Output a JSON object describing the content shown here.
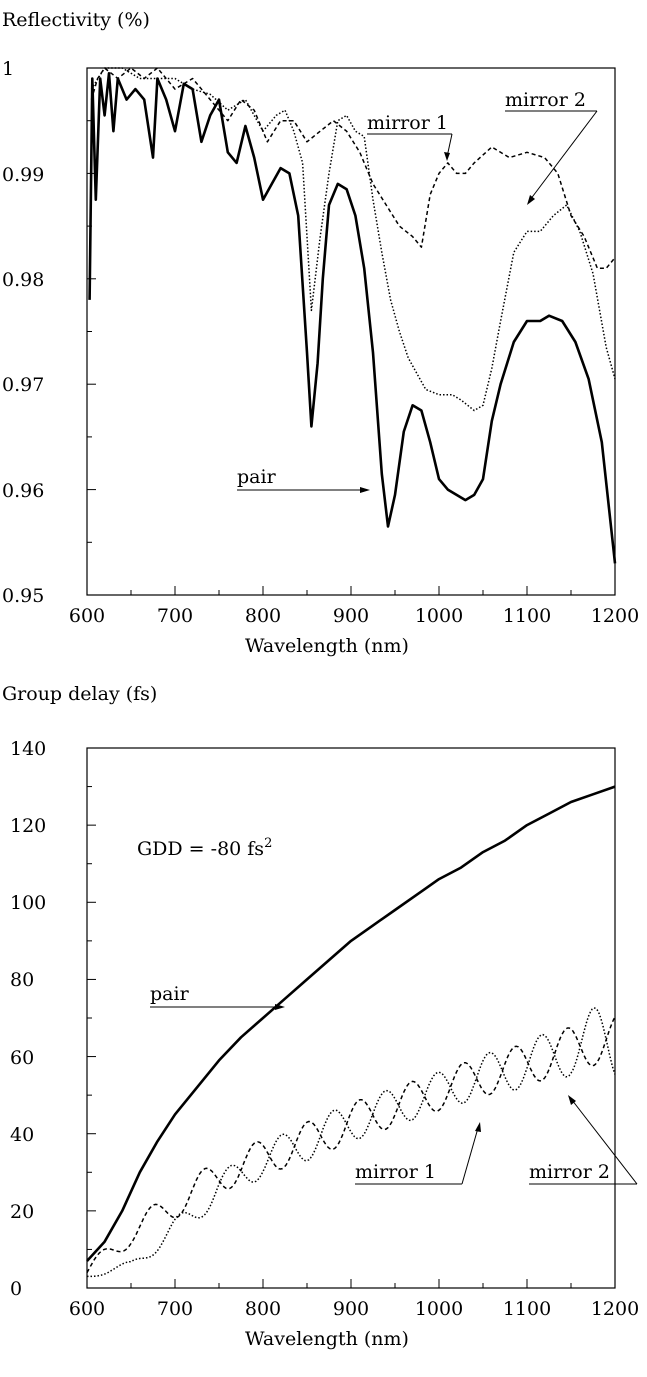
{
  "chart_data": [
    {
      "type": "line",
      "ylabel": "Reflectivity (%)",
      "xlabel": "Wavelength (nm)",
      "xlim": [
        600,
        1200
      ],
      "ylim": [
        0.95,
        1.0
      ],
      "x_ticks": [
        "600",
        "700",
        "800",
        "900",
        "1000",
        "1100",
        "1200"
      ],
      "y_ticks": [
        "0.95",
        "0.96",
        "0.97",
        "0.98",
        "0.99",
        "1"
      ],
      "annotations": [
        "mirror 1",
        "mirror 2",
        "pair"
      ],
      "series": [
        {
          "name": "mirror 1",
          "style": "dashed",
          "points": [
            [
              605,
              0.997
            ],
            [
              612,
              0.999
            ],
            [
              620,
              1.0
            ],
            [
              635,
              0.999
            ],
            [
              650,
              1.0
            ],
            [
              665,
              0.999
            ],
            [
              680,
              1.0
            ],
            [
              700,
              0.998
            ],
            [
              720,
              0.999
            ],
            [
              740,
              0.997
            ],
            [
              760,
              0.995
            ],
            [
              775,
              0.997
            ],
            [
              790,
              0.996
            ],
            [
              805,
              0.993
            ],
            [
              820,
              0.995
            ],
            [
              835,
              0.995
            ],
            [
              850,
              0.993
            ],
            [
              865,
              0.994
            ],
            [
              880,
              0.995
            ],
            [
              895,
              0.994
            ],
            [
              910,
              0.992
            ],
            [
              925,
              0.989
            ],
            [
              940,
              0.987
            ],
            [
              955,
              0.985
            ],
            [
              970,
              0.984
            ],
            [
              980,
              0.983
            ],
            [
              990,
              0.988
            ],
            [
              1000,
              0.99
            ],
            [
              1010,
              0.991
            ],
            [
              1020,
              0.99
            ],
            [
              1030,
              0.99
            ],
            [
              1040,
              0.991
            ],
            [
              1060,
              0.9925
            ],
            [
              1080,
              0.9915
            ],
            [
              1100,
              0.992
            ],
            [
              1120,
              0.9915
            ],
            [
              1135,
              0.99
            ],
            [
              1150,
              0.986
            ],
            [
              1165,
              0.984
            ],
            [
              1180,
              0.981
            ],
            [
              1190,
              0.981
            ],
            [
              1200,
              0.982
            ]
          ]
        },
        {
          "name": "mirror 2",
          "style": "dotted",
          "points": [
            [
              605,
              0.998
            ],
            [
              620,
              1.0
            ],
            [
              640,
              1.0
            ],
            [
              660,
              0.999
            ],
            [
              680,
              0.999
            ],
            [
              700,
              0.999
            ],
            [
              720,
              0.998
            ],
            [
              740,
              0.9975
            ],
            [
              760,
              0.996
            ],
            [
              780,
              0.997
            ],
            [
              800,
              0.994
            ],
            [
              815,
              0.9955
            ],
            [
              825,
              0.996
            ],
            [
              835,
              0.994
            ],
            [
              845,
              0.991
            ],
            [
              855,
              0.977
            ],
            [
              865,
              0.984
            ],
            [
              875,
              0.99
            ],
            [
              885,
              0.995
            ],
            [
              895,
              0.9955
            ],
            [
              905,
              0.994
            ],
            [
              915,
              0.9935
            ],
            [
              925,
              0.9875
            ],
            [
              935,
              0.9825
            ],
            [
              945,
              0.978
            ],
            [
              955,
              0.975
            ],
            [
              965,
              0.9725
            ],
            [
              975,
              0.971
            ],
            [
              985,
              0.9695
            ],
            [
              1000,
              0.969
            ],
            [
              1015,
              0.969
            ],
            [
              1025,
              0.9685
            ],
            [
              1040,
              0.9675
            ],
            [
              1050,
              0.968
            ],
            [
              1060,
              0.9715
            ],
            [
              1070,
              0.976
            ],
            [
              1085,
              0.9825
            ],
            [
              1100,
              0.9845
            ],
            [
              1115,
              0.9845
            ],
            [
              1130,
              0.986
            ],
            [
              1145,
              0.987
            ],
            [
              1160,
              0.9845
            ],
            [
              1175,
              0.9805
            ],
            [
              1190,
              0.9735
            ],
            [
              1200,
              0.9705
            ]
          ]
        },
        {
          "name": "pair",
          "style": "solid",
          "points": [
            [
              603,
              0.978
            ],
            [
              606,
              0.999
            ],
            [
              610,
              0.9875
            ],
            [
              615,
              0.999
            ],
            [
              620,
              0.9955
            ],
            [
              625,
              0.9995
            ],
            [
              630,
              0.994
            ],
            [
              635,
              0.999
            ],
            [
              645,
              0.997
            ],
            [
              655,
              0.998
            ],
            [
              665,
              0.997
            ],
            [
              675,
              0.9915
            ],
            [
              680,
              0.999
            ],
            [
              690,
              0.997
            ],
            [
              700,
              0.994
            ],
            [
              710,
              0.9985
            ],
            [
              720,
              0.998
            ],
            [
              730,
              0.993
            ],
            [
              740,
              0.9955
            ],
            [
              750,
              0.997
            ],
            [
              760,
              0.992
            ],
            [
              770,
              0.991
            ],
            [
              780,
              0.9945
            ],
            [
              790,
              0.9915
            ],
            [
              800,
              0.9875
            ],
            [
              810,
              0.989
            ],
            [
              820,
              0.9905
            ],
            [
              830,
              0.99
            ],
            [
              840,
              0.986
            ],
            [
              850,
              0.973
            ],
            [
              855,
              0.966
            ],
            [
              862,
              0.972
            ],
            [
              868,
              0.98
            ],
            [
              875,
              0.987
            ],
            [
              885,
              0.989
            ],
            [
              895,
              0.9885
            ],
            [
              905,
              0.986
            ],
            [
              915,
              0.981
            ],
            [
              925,
              0.973
            ],
            [
              935,
              0.9615
            ],
            [
              942,
              0.9565
            ],
            [
              950,
              0.9595
            ],
            [
              960,
              0.9655
            ],
            [
              970,
              0.968
            ],
            [
              980,
              0.9675
            ],
            [
              990,
              0.9645
            ],
            [
              1000,
              0.961
            ],
            [
              1010,
              0.96
            ],
            [
              1020,
              0.9595
            ],
            [
              1030,
              0.959
            ],
            [
              1040,
              0.9595
            ],
            [
              1050,
              0.961
            ],
            [
              1060,
              0.9665
            ],
            [
              1070,
              0.97
            ],
            [
              1085,
              0.974
            ],
            [
              1100,
              0.976
            ],
            [
              1115,
              0.976
            ],
            [
              1125,
              0.9765
            ],
            [
              1140,
              0.976
            ],
            [
              1155,
              0.974
            ],
            [
              1170,
              0.9705
            ],
            [
              1185,
              0.9645
            ],
            [
              1200,
              0.953
            ]
          ]
        }
      ]
    },
    {
      "type": "line",
      "ylabel": "Group delay (fs)",
      "xlabel": "Wavelength (nm)",
      "xlim": [
        600,
        1200
      ],
      "ylim": [
        0,
        140
      ],
      "x_ticks": [
        "600",
        "700",
        "800",
        "900",
        "1000",
        "1100",
        "1200"
      ],
      "y_ticks": [
        "0",
        "20",
        "40",
        "60",
        "80",
        "100",
        "120",
        "140"
      ],
      "annotation_gdd": "GDD = -80 fs",
      "annotation_gdd_sup": "2",
      "annotations": [
        "pair",
        "mirror 1",
        "mirror 2"
      ],
      "series": [
        {
          "name": "pair",
          "style": "solid",
          "points": [
            [
              600,
              7
            ],
            [
              620,
              12
            ],
            [
              640,
              20
            ],
            [
              660,
              30
            ],
            [
              680,
              38
            ],
            [
              700,
              45
            ],
            [
              725,
              52
            ],
            [
              750,
              59
            ],
            [
              775,
              65
            ],
            [
              800,
              70
            ],
            [
              825,
              75
            ],
            [
              850,
              80
            ],
            [
              875,
              85
            ],
            [
              900,
              90
            ],
            [
              925,
              94
            ],
            [
              950,
              98
            ],
            [
              975,
              102
            ],
            [
              1000,
              106
            ],
            [
              1025,
              109
            ],
            [
              1050,
              113
            ],
            [
              1075,
              116
            ],
            [
              1100,
              120
            ],
            [
              1125,
              123
            ],
            [
              1150,
              126
            ],
            [
              1175,
              128
            ],
            [
              1200,
              130
            ]
          ]
        },
        {
          "name": "mirror 1",
          "style": "dashed",
          "center": [
            [
              600,
              4
            ],
            [
              650,
              14
            ],
            [
              700,
              22
            ],
            [
              750,
              29
            ],
            [
              800,
              34
            ],
            [
              850,
              38
            ],
            [
              900,
              43
            ],
            [
              950,
              47
            ],
            [
              1000,
              51
            ],
            [
              1050,
              55
            ],
            [
              1100,
              58
            ],
            [
              1150,
              62
            ],
            [
              1200,
              65
            ]
          ],
          "amplitude": [
            [
              600,
              2
            ],
            [
              700,
              4
            ],
            [
              850,
              5
            ],
            [
              1000,
              5
            ],
            [
              1100,
              5.5
            ],
            [
              1200,
              6
            ]
          ],
          "period_nm": 59,
          "phase_deg": 0
        },
        {
          "name": "mirror 2",
          "style": "dotted",
          "center": [
            [
              600,
              3
            ],
            [
              650,
              6
            ],
            [
              700,
              15
            ],
            [
              750,
              26
            ],
            [
              800,
              33
            ],
            [
              850,
              38
            ],
            [
              900,
              43
            ],
            [
              950,
              47
            ],
            [
              1000,
              51
            ],
            [
              1050,
              55
            ],
            [
              1100,
              58
            ],
            [
              1150,
              62
            ],
            [
              1200,
              65
            ]
          ],
          "amplitude": [
            [
              600,
              0.5
            ],
            [
              650,
              1
            ],
            [
              700,
              3
            ],
            [
              850,
              5
            ],
            [
              1000,
              5
            ],
            [
              1100,
              6
            ],
            [
              1150,
              7
            ],
            [
              1200,
              11
            ]
          ],
          "period_nm": 59,
          "phase_deg": 180
        }
      ]
    }
  ]
}
